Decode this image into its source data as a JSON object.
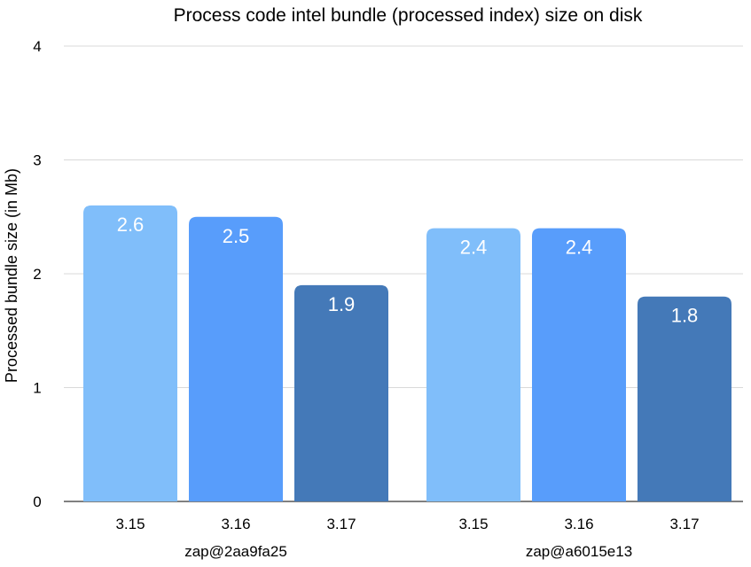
{
  "chart_data": {
    "type": "bar",
    "title": "Process code intel bundle (processed index) size on disk",
    "ylabel": "Processed bundle size (in Mb)",
    "xlabel": "",
    "ylim": [
      0,
      4
    ],
    "yticks": [
      "0",
      "1",
      "2",
      "3",
      "4"
    ],
    "grid": true,
    "groups": [
      {
        "name": "zap@2aa9fa25",
        "bars": [
          {
            "label": "3.15",
            "value": 2.6,
            "value_label": "2.6",
            "color": "#80BEFA"
          },
          {
            "label": "3.16",
            "value": 2.5,
            "value_label": "2.5",
            "color": "#589DFB"
          },
          {
            "label": "3.17",
            "value": 1.9,
            "value_label": "1.9",
            "color": "#4479B8"
          }
        ]
      },
      {
        "name": "zap@a6015e13",
        "bars": [
          {
            "label": "3.15",
            "value": 2.4,
            "value_label": "2.4",
            "color": "#80BEFA"
          },
          {
            "label": "3.16",
            "value": 2.4,
            "value_label": "2.4",
            "color": "#589DFB"
          },
          {
            "label": "3.17",
            "value": 1.8,
            "value_label": "1.8",
            "color": "#4479B8"
          }
        ]
      }
    ]
  }
}
